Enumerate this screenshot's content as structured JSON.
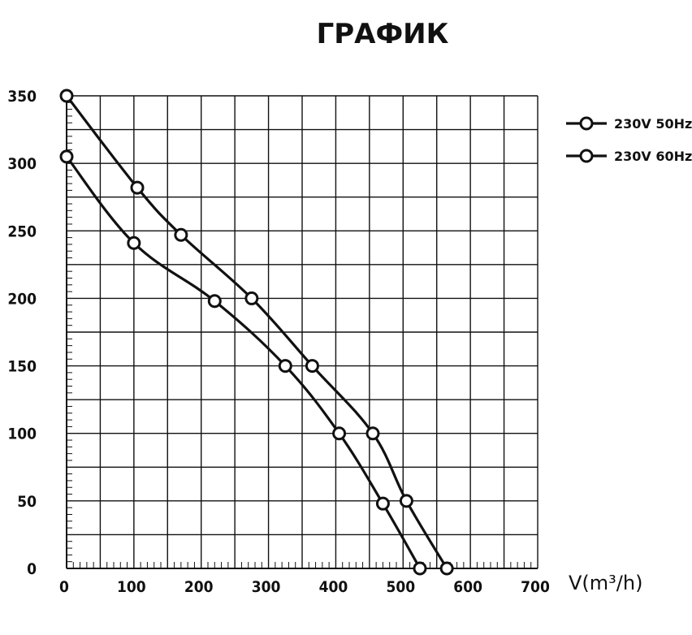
{
  "title": "ГРАФИК",
  "chart_data": {
    "type": "line",
    "title": "ГРАФИК",
    "xlabel": "V(m³/h)",
    "ylabel": "",
    "xlim": [
      0,
      700
    ],
    "ylim": [
      0,
      350
    ],
    "x_ticks": [
      "0",
      "100",
      "200",
      "300",
      "400",
      "500",
      "600",
      "700"
    ],
    "y_ticks": [
      "0",
      "50",
      "100",
      "150",
      "200",
      "250",
      "300",
      "350"
    ],
    "grid": true,
    "legend_position": "top-right",
    "series": [
      {
        "name": "230V 50Hz",
        "color": "#111111",
        "marker": "circle",
        "points": [
          [
            0,
            350
          ],
          [
            105,
            282
          ],
          [
            170,
            247
          ],
          [
            275,
            200
          ],
          [
            365,
            150
          ],
          [
            455,
            100
          ],
          [
            505,
            50
          ],
          [
            565,
            0
          ]
        ]
      },
      {
        "name": "230V 60Hz",
        "color": "#111111",
        "marker": "circle",
        "points": [
          [
            0,
            305
          ],
          [
            100,
            241
          ],
          [
            220,
            198
          ],
          [
            325,
            150
          ],
          [
            405,
            100
          ],
          [
            470,
            48
          ],
          [
            525,
            0
          ]
        ]
      }
    ]
  }
}
